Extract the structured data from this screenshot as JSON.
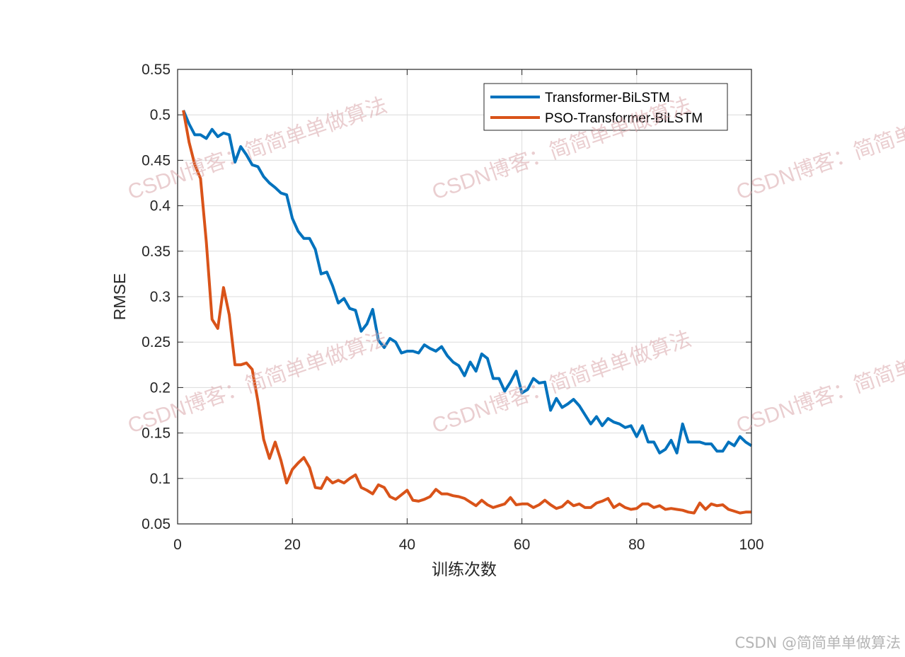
{
  "chart_data": {
    "type": "line",
    "title": "",
    "xlabel": "训练次数",
    "ylabel": "RMSE",
    "xlim": [
      0,
      100
    ],
    "ylim": [
      0.05,
      0.55
    ],
    "xticks": [
      0,
      20,
      40,
      60,
      80,
      100
    ],
    "yticks": [
      0.05,
      0.1,
      0.15,
      0.2,
      0.25,
      0.3,
      0.35,
      0.4,
      0.45,
      0.5,
      0.55
    ],
    "grid": true,
    "legend_position": "top-right",
    "series": [
      {
        "name": "Transformer-BiLSTM",
        "color": "#0072BD",
        "x": [
          1,
          2,
          3,
          4,
          5,
          6,
          7,
          8,
          9,
          10,
          11,
          12,
          13,
          14,
          15,
          16,
          17,
          18,
          19,
          20,
          21,
          22,
          23,
          24,
          25,
          26,
          27,
          28,
          29,
          30,
          31,
          32,
          33,
          34,
          35,
          36,
          37,
          38,
          39,
          40,
          41,
          42,
          43,
          44,
          45,
          46,
          47,
          48,
          49,
          50,
          51,
          52,
          53,
          54,
          55,
          56,
          57,
          58,
          59,
          60,
          61,
          62,
          63,
          64,
          65,
          66,
          67,
          68,
          69,
          70,
          71,
          72,
          73,
          74,
          75,
          76,
          77,
          78,
          79,
          80,
          81,
          82,
          83,
          84,
          85,
          86,
          87,
          88,
          89,
          90,
          91,
          92,
          93,
          94,
          95,
          96,
          97,
          98,
          99,
          100
        ],
        "y": [
          0.505,
          0.49,
          0.478,
          0.478,
          0.474,
          0.484,
          0.476,
          0.48,
          0.478,
          0.448,
          0.465,
          0.456,
          0.445,
          0.443,
          0.432,
          0.425,
          0.42,
          0.414,
          0.412,
          0.386,
          0.372,
          0.364,
          0.364,
          0.352,
          0.325,
          0.327,
          0.312,
          0.293,
          0.298,
          0.287,
          0.285,
          0.262,
          0.27,
          0.286,
          0.252,
          0.244,
          0.254,
          0.25,
          0.238,
          0.24,
          0.24,
          0.238,
          0.247,
          0.243,
          0.24,
          0.245,
          0.235,
          0.228,
          0.224,
          0.213,
          0.228,
          0.218,
          0.237,
          0.232,
          0.21,
          0.21,
          0.196,
          0.206,
          0.218,
          0.194,
          0.198,
          0.21,
          0.205,
          0.206,
          0.175,
          0.188,
          0.178,
          0.182,
          0.187,
          0.18,
          0.17,
          0.16,
          0.168,
          0.158,
          0.166,
          0.162,
          0.16,
          0.156,
          0.158,
          0.146,
          0.158,
          0.14,
          0.14,
          0.128,
          0.132,
          0.142,
          0.128,
          0.16,
          0.14,
          0.14,
          0.14,
          0.138,
          0.138,
          0.13,
          0.13,
          0.14,
          0.136,
          0.146,
          0.14,
          0.136
        ]
      },
      {
        "name": "PSO-Transformer-BiLSTM",
        "color": "#D95319",
        "x": [
          1,
          2,
          3,
          4,
          5,
          6,
          7,
          8,
          9,
          10,
          11,
          12,
          13,
          14,
          15,
          16,
          17,
          18,
          19,
          20,
          21,
          22,
          23,
          24,
          25,
          26,
          27,
          28,
          29,
          30,
          31,
          32,
          33,
          34,
          35,
          36,
          37,
          38,
          39,
          40,
          41,
          42,
          43,
          44,
          45,
          46,
          47,
          48,
          49,
          50,
          51,
          52,
          53,
          54,
          55,
          56,
          57,
          58,
          59,
          60,
          61,
          62,
          63,
          64,
          65,
          66,
          67,
          68,
          69,
          70,
          71,
          72,
          73,
          74,
          75,
          76,
          77,
          78,
          79,
          80,
          81,
          82,
          83,
          84,
          85,
          86,
          87,
          88,
          89,
          90,
          91,
          92,
          93,
          94,
          95,
          96,
          97,
          98,
          99,
          100
        ],
        "y": [
          0.505,
          0.47,
          0.445,
          0.43,
          0.36,
          0.275,
          0.265,
          0.31,
          0.28,
          0.225,
          0.225,
          0.227,
          0.22,
          0.185,
          0.143,
          0.122,
          0.14,
          0.12,
          0.095,
          0.11,
          0.117,
          0.123,
          0.112,
          0.09,
          0.089,
          0.101,
          0.095,
          0.098,
          0.095,
          0.1,
          0.104,
          0.09,
          0.087,
          0.083,
          0.093,
          0.09,
          0.08,
          0.077,
          0.082,
          0.087,
          0.076,
          0.075,
          0.077,
          0.08,
          0.088,
          0.083,
          0.083,
          0.081,
          0.08,
          0.078,
          0.074,
          0.07,
          0.076,
          0.071,
          0.068,
          0.07,
          0.072,
          0.079,
          0.071,
          0.072,
          0.072,
          0.068,
          0.071,
          0.076,
          0.071,
          0.067,
          0.069,
          0.075,
          0.07,
          0.072,
          0.068,
          0.068,
          0.073,
          0.075,
          0.078,
          0.068,
          0.072,
          0.068,
          0.066,
          0.067,
          0.072,
          0.072,
          0.068,
          0.07,
          0.066,
          0.067,
          0.066,
          0.065,
          0.063,
          0.062,
          0.073,
          0.066,
          0.072,
          0.07,
          0.071,
          0.066,
          0.064,
          0.062,
          0.063,
          0.063
        ]
      }
    ]
  },
  "watermark": {
    "text": "CSDN博客：简简单单做算法",
    "footer": "CSDN @简简单单做算法"
  }
}
